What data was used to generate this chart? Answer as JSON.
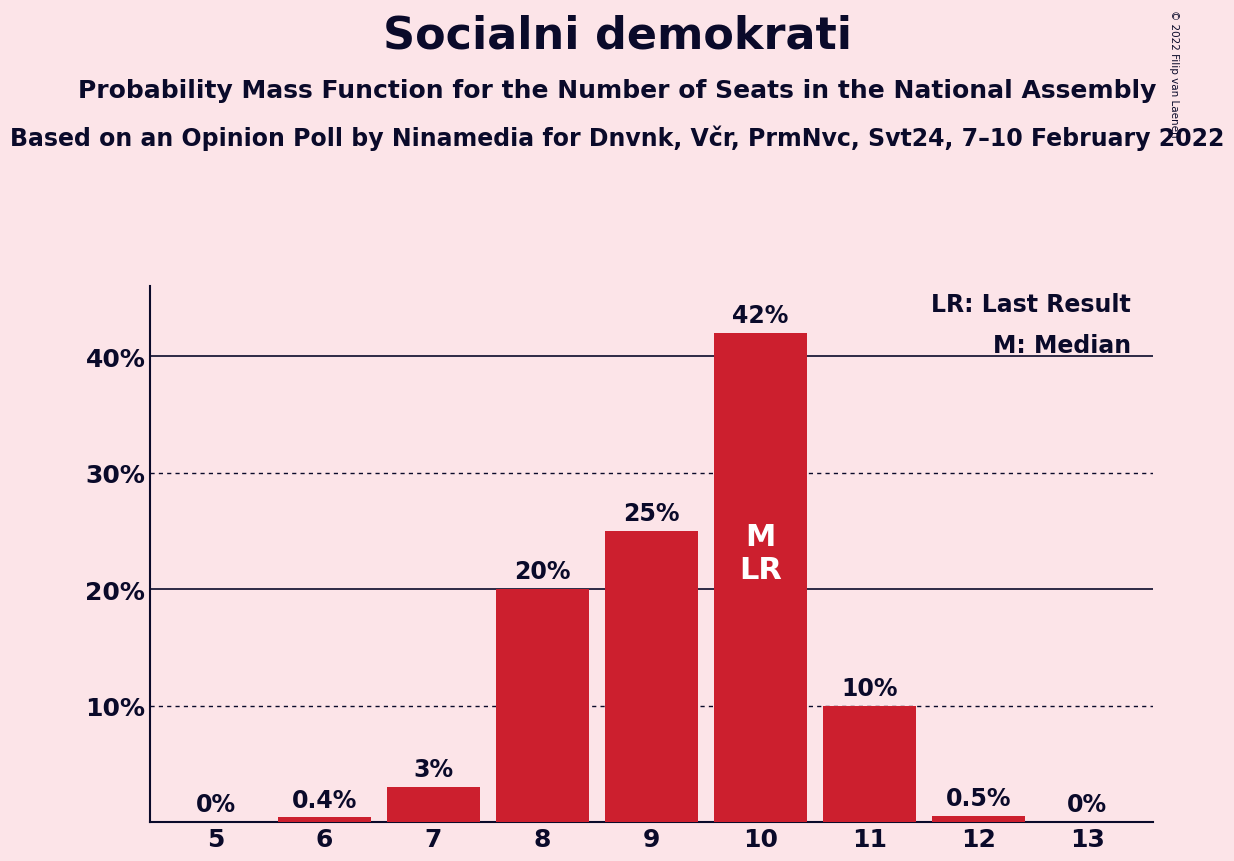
{
  "title": "Socialni demokrati",
  "subtitle1": "Probability Mass Function for the Number of Seats in the National Assembly",
  "subtitle2": "Based on an Opinion Poll by Ninamedia for Dnvnk, Včr, PrmNvc, Svt24, 7–10 February 2022",
  "copyright": "© 2022 Filip van Laenen",
  "categories": [
    5,
    6,
    7,
    8,
    9,
    10,
    11,
    12,
    13
  ],
  "values": [
    0.0,
    0.4,
    3.0,
    20.0,
    25.0,
    42.0,
    10.0,
    0.5,
    0.0
  ],
  "labels": [
    "0%",
    "0.4%",
    "3%",
    "20%",
    "25%",
    "42%",
    "10%",
    "0.5%",
    "0%"
  ],
  "bar_color": "#cc1f2e",
  "background_color": "#fce4e8",
  "text_color": "#0a0a2a",
  "median_seat": 10,
  "median_label": "M",
  "lr_label": "LR",
  "legend_lr": "LR: Last Result",
  "legend_m": "M: Median",
  "ylim": [
    0,
    46
  ],
  "yticks": [
    10,
    20,
    30,
    40
  ],
  "ytick_labels": [
    "10%",
    "20%",
    "30%",
    "40%"
  ],
  "solid_lines": [
    20,
    40
  ],
  "dotted_lines": [
    10,
    30
  ],
  "title_fontsize": 32,
  "subtitle_fontsize": 18,
  "subtitle2_fontsize": 17,
  "label_fontsize": 17,
  "tick_fontsize": 18,
  "legend_fontsize": 17,
  "inbar_label_color": "#ffffff",
  "inbar_fontsize": 22
}
